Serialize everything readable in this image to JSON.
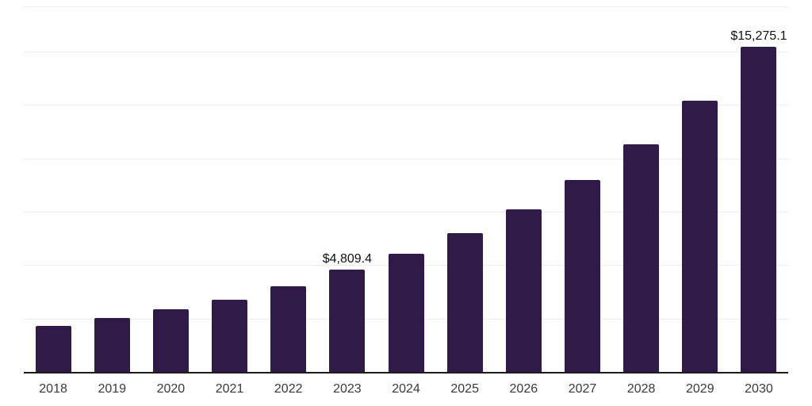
{
  "chart_data": {
    "type": "bar",
    "title": "",
    "xlabel": "",
    "ylabel": "",
    "categories": [
      "2018",
      "2019",
      "2020",
      "2021",
      "2022",
      "2023",
      "2024",
      "2025",
      "2026",
      "2027",
      "2028",
      "2029",
      "2030"
    ],
    "values": [
      2200,
      2550,
      2970,
      3430,
      4030,
      4809.4,
      5570,
      6530,
      7640,
      9010,
      10690,
      12730,
      15275.1
    ],
    "data_labels": {
      "2023": "$4,809.4",
      "2030": "$15,275.1"
    },
    "ylim": [
      0,
      17150
    ],
    "gridline_interval": 2500,
    "grid": "on",
    "legend": "none",
    "colors": {
      "bar": "#2f1a48",
      "gridline": "#ededed",
      "axis_line": "#1c1c1c",
      "tick_label": "#3a3a3a",
      "data_label": "#111111",
      "background": "#ffffff"
    }
  }
}
